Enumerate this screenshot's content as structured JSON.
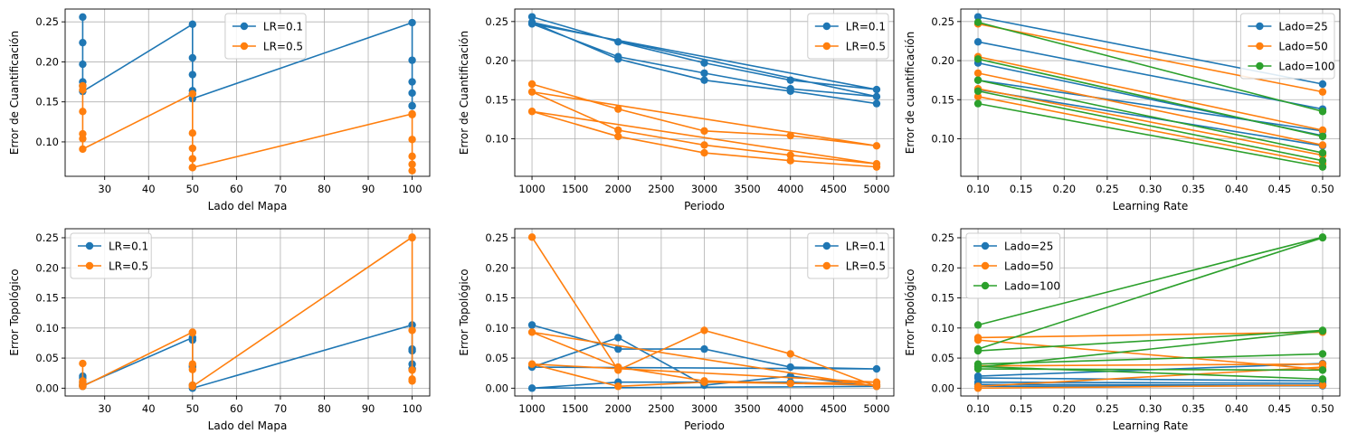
{
  "colors": {
    "LR=0.1": "#1f77b4",
    "LR=0.5": "#ff7f0e",
    "Lado=25": "#1f77b4",
    "Lado=50": "#ff7f0e",
    "Lado=100": "#2ca02c"
  },
  "chart_data": [
    {
      "type": "line",
      "xlabel": "Lado del Mapa",
      "ylabel": "Error de Cuantificación",
      "xlim": [
        21,
        104
      ],
      "ylim": [
        0.057,
        0.266
      ],
      "xticks": [
        30,
        40,
        50,
        60,
        70,
        80,
        90,
        100
      ],
      "yticks": [
        0.1,
        0.15,
        0.2,
        0.25
      ],
      "xtick_labels": [
        "30",
        "40",
        "50",
        "60",
        "70",
        "80",
        "90",
        "100"
      ],
      "ytick_labels": [
        "0.10",
        "0.15",
        "0.20",
        "0.25"
      ],
      "grid": true,
      "legend": "top-center",
      "series": [
        {
          "name": "LR=0.1",
          "color": "#1f77b4",
          "x": [
            25,
            25,
            25,
            25,
            25,
            25,
            50,
            50,
            50,
            50,
            50,
            50,
            100,
            100,
            100,
            100,
            100,
            100
          ],
          "y": [
            0.256,
            0.224,
            0.197,
            0.175,
            0.17,
            0.163,
            0.247,
            0.205,
            0.184,
            0.164,
            0.16,
            0.154,
            0.249,
            0.202,
            0.175,
            0.161,
            0.145,
            0.145
          ]
        },
        {
          "name": "LR=0.5",
          "color": "#ff7f0e",
          "x": [
            25,
            25,
            25,
            25,
            25,
            25,
            50,
            50,
            50,
            50,
            50,
            50,
            100,
            100,
            100,
            100,
            100,
            100
          ],
          "y": [
            0.17,
            0.165,
            0.138,
            0.11,
            0.104,
            0.091,
            0.16,
            0.111,
            0.092,
            0.079,
            0.068,
            0.068,
            0.135,
            0.134,
            0.103,
            0.082,
            0.072,
            0.064
          ]
        }
      ]
    },
    {
      "type": "line",
      "xlabel": "Periodo",
      "ylabel": "Error de Cuantificación",
      "xlim": [
        800,
        5200
      ],
      "ylim": [
        0.052,
        0.266
      ],
      "xticks": [
        1000,
        1500,
        2000,
        2500,
        3000,
        3500,
        4000,
        4500,
        5000
      ],
      "yticks": [
        0.1,
        0.15,
        0.2,
        0.25
      ],
      "xtick_labels": [
        "1000",
        "1500",
        "2000",
        "2500",
        "3000",
        "3500",
        "4000",
        "4500",
        "5000"
      ],
      "ytick_labels": [
        "0.10",
        "0.15",
        "0.20",
        "0.25"
      ],
      "grid": true,
      "legend": "top-right",
      "series": [
        {
          "name": "LR=0.1",
          "color": "#1f77b4",
          "x": [
            1000,
            2000,
            3000,
            4000,
            5000,
            1000,
            2000,
            3000,
            4000,
            5000,
            1000,
            2000,
            3000,
            4000,
            5000
          ],
          "y": [
            0.256,
            0.224,
            0.197,
            0.175,
            0.163,
            0.247,
            0.205,
            0.184,
            0.164,
            0.154,
            0.249,
            0.202,
            0.175,
            0.161,
            0.145
          ]
        },
        {
          "name": "LR=0.5",
          "color": "#ff7f0e",
          "x": [
            1000,
            2000,
            3000,
            4000,
            5000,
            1000,
            2000,
            3000,
            4000,
            5000,
            1000,
            2000,
            3000,
            4000,
            5000
          ],
          "y": [
            0.17,
            0.138,
            0.11,
            0.104,
            0.091,
            0.16,
            0.111,
            0.092,
            0.079,
            0.068,
            0.135,
            0.103,
            0.082,
            0.072,
            0.064
          ]
        }
      ]
    },
    {
      "type": "line",
      "xlabel": "Learning Rate",
      "ylabel": "Error de cuantificación",
      "xlim": [
        0.08,
        0.52
      ],
      "ylim": [
        0.052,
        0.266
      ],
      "xticks": [
        0.1,
        0.15,
        0.2,
        0.25,
        0.3,
        0.35,
        0.4,
        0.45,
        0.5
      ],
      "yticks": [
        0.1,
        0.15,
        0.2,
        0.25
      ],
      "xtick_labels": [
        "0.10",
        "0.15",
        "0.20",
        "0.25",
        "0.30",
        "0.35",
        "0.40",
        "0.45",
        "0.50"
      ],
      "ytick_labels": [
        "0.10",
        "0.15",
        "0.20",
        "0.25"
      ],
      "grid": true,
      "legend": "top-right",
      "series": [
        {
          "name": "Lado=25",
          "color": "#1f77b4",
          "segments": [
            [
              0.256,
              0.17
            ],
            [
              0.224,
              0.138
            ],
            [
              0.197,
              0.104
            ],
            [
              0.175,
              0.11
            ],
            [
              0.163,
              0.091
            ]
          ]
        },
        {
          "name": "Lado=50",
          "color": "#ff7f0e",
          "segments": [
            [
              0.247,
              0.16
            ],
            [
              0.205,
              0.111
            ],
            [
              0.184,
              0.092
            ],
            [
              0.164,
              0.079
            ],
            [
              0.154,
              0.068
            ]
          ]
        },
        {
          "name": "Lado=100",
          "color": "#2ca02c",
          "segments": [
            [
              0.249,
              0.135
            ],
            [
              0.202,
              0.103
            ],
            [
              0.175,
              0.082
            ],
            [
              0.161,
              0.072
            ],
            [
              0.145,
              0.064
            ]
          ]
        }
      ]
    },
    {
      "type": "line",
      "xlabel": "Lado del Mapa",
      "ylabel": "Error Topológico",
      "xlim": [
        21,
        104
      ],
      "ylim": [
        -0.013,
        0.265
      ],
      "xticks": [
        30,
        40,
        50,
        60,
        70,
        80,
        90,
        100
      ],
      "yticks": [
        0.0,
        0.05,
        0.1,
        0.15,
        0.2,
        0.25
      ],
      "xtick_labels": [
        "30",
        "40",
        "50",
        "60",
        "70",
        "80",
        "90",
        "100"
      ],
      "ytick_labels": [
        "0.00",
        "0.05",
        "0.10",
        "0.15",
        "0.20",
        "0.25"
      ],
      "grid": true,
      "legend": "top-left",
      "series": [
        {
          "name": "LR=0.1",
          "color": "#1f77b4",
          "x": [
            25,
            25,
            25,
            25,
            25,
            25,
            50,
            50,
            50,
            50,
            50,
            50,
            100,
            100,
            100,
            100,
            100,
            100
          ],
          "y": [
            0.02,
            0.017,
            0.01,
            0.006,
            0.003,
            0.004,
            0.084,
            0.08,
            0.037,
            0.035,
            0.005,
            0.0,
            0.105,
            0.065,
            0.062,
            0.04,
            0.032,
            0.032
          ]
        },
        {
          "name": "LR=0.5",
          "color": "#ff7f0e",
          "x": [
            25,
            25,
            25,
            25,
            25,
            25,
            50,
            50,
            50,
            50,
            50,
            50,
            100,
            100,
            100,
            100,
            100,
            100
          ],
          "y": [
            0.041,
            0.012,
            0.008,
            0.005,
            0.004,
            0.003,
            0.093,
            0.092,
            0.04,
            0.031,
            0.005,
            0.003,
            0.251,
            0.25,
            0.096,
            0.03,
            0.015,
            0.012
          ]
        }
      ]
    },
    {
      "type": "line",
      "xlabel": "Periodo",
      "ylabel": "Error Topológico",
      "xlim": [
        800,
        5200
      ],
      "ylim": [
        -0.013,
        0.265
      ],
      "xticks": [
        1000,
        1500,
        2000,
        2500,
        3000,
        3500,
        4000,
        4500,
        5000
      ],
      "yticks": [
        0.0,
        0.05,
        0.1,
        0.15,
        0.2,
        0.25
      ],
      "xtick_labels": [
        "1000",
        "1500",
        "2000",
        "2500",
        "3000",
        "3500",
        "4000",
        "4500",
        "5000"
      ],
      "ytick_labels": [
        "0.00",
        "0.05",
        "0.10",
        "0.15",
        "0.20",
        "0.25"
      ],
      "grid": true,
      "legend": "top-right",
      "series": [
        {
          "name": "LR=0.1",
          "color": "#1f77b4",
          "x": [
            1000,
            2000,
            3000,
            4000,
            5000,
            1000,
            2000,
            3000,
            4000,
            5000,
            1000,
            2000,
            3000,
            4000,
            5000
          ],
          "y": [
            0.105,
            0.065,
            0.065,
            0.035,
            0.032,
            0.035,
            0.084,
            0.005,
            0.02,
            0.003,
            0.0,
            0.01,
            0.01,
            0.01,
            0.005
          ]
        },
        {
          "name": "LR=0.5",
          "color": "#ff7f0e",
          "x": [
            1000,
            2000,
            3000,
            4000,
            5000,
            1000,
            2000,
            3000,
            4000,
            5000,
            1000,
            2000,
            3000,
            4000,
            5000
          ],
          "y": [
            0.251,
            0.03,
            0.096,
            0.057,
            0.003,
            0.093,
            0.035,
            0.012,
            0.008,
            0.01,
            0.04,
            0.003,
            0.01,
            0.008,
            0.005
          ]
        }
      ]
    },
    {
      "type": "line",
      "xlabel": "Learning Rate",
      "ylabel": "Error Topológico",
      "xlim": [
        0.08,
        0.52
      ],
      "ylim": [
        -0.013,
        0.265
      ],
      "xticks": [
        0.1,
        0.15,
        0.2,
        0.25,
        0.3,
        0.35,
        0.4,
        0.45,
        0.5
      ],
      "yticks": [
        0.0,
        0.05,
        0.1,
        0.15,
        0.2,
        0.25
      ],
      "xtick_labels": [
        "0.10",
        "0.15",
        "0.20",
        "0.25",
        "0.30",
        "0.35",
        "0.40",
        "0.45",
        "0.50"
      ],
      "ytick_labels": [
        "0.00",
        "0.05",
        "0.10",
        "0.15",
        "0.20",
        "0.25"
      ],
      "grid": true,
      "legend": "top-left",
      "series": [
        {
          "name": "Lado=25",
          "color": "#1f77b4",
          "segments": [
            [
              0.02,
              0.041
            ],
            [
              0.017,
              0.012
            ],
            [
              0.01,
              0.008
            ],
            [
              0.006,
              0.005
            ],
            [
              0.003,
              0.004
            ]
          ]
        },
        {
          "name": "Lado=50",
          "color": "#ff7f0e",
          "segments": [
            [
              0.084,
              0.093
            ],
            [
              0.08,
              0.031
            ],
            [
              0.037,
              0.04
            ],
            [
              0.003,
              0.035
            ],
            [
              0.0,
              0.005
            ]
          ]
        },
        {
          "name": "Lado=100",
          "color": "#2ca02c",
          "segments": [
            [
              0.105,
              0.251
            ],
            [
              0.065,
              0.25
            ],
            [
              0.062,
              0.096
            ],
            [
              0.04,
              0.057
            ],
            [
              0.032,
              0.03
            ],
            [
              0.035,
              0.095
            ],
            [
              0.036,
              0.015
            ]
          ]
        }
      ]
    }
  ]
}
